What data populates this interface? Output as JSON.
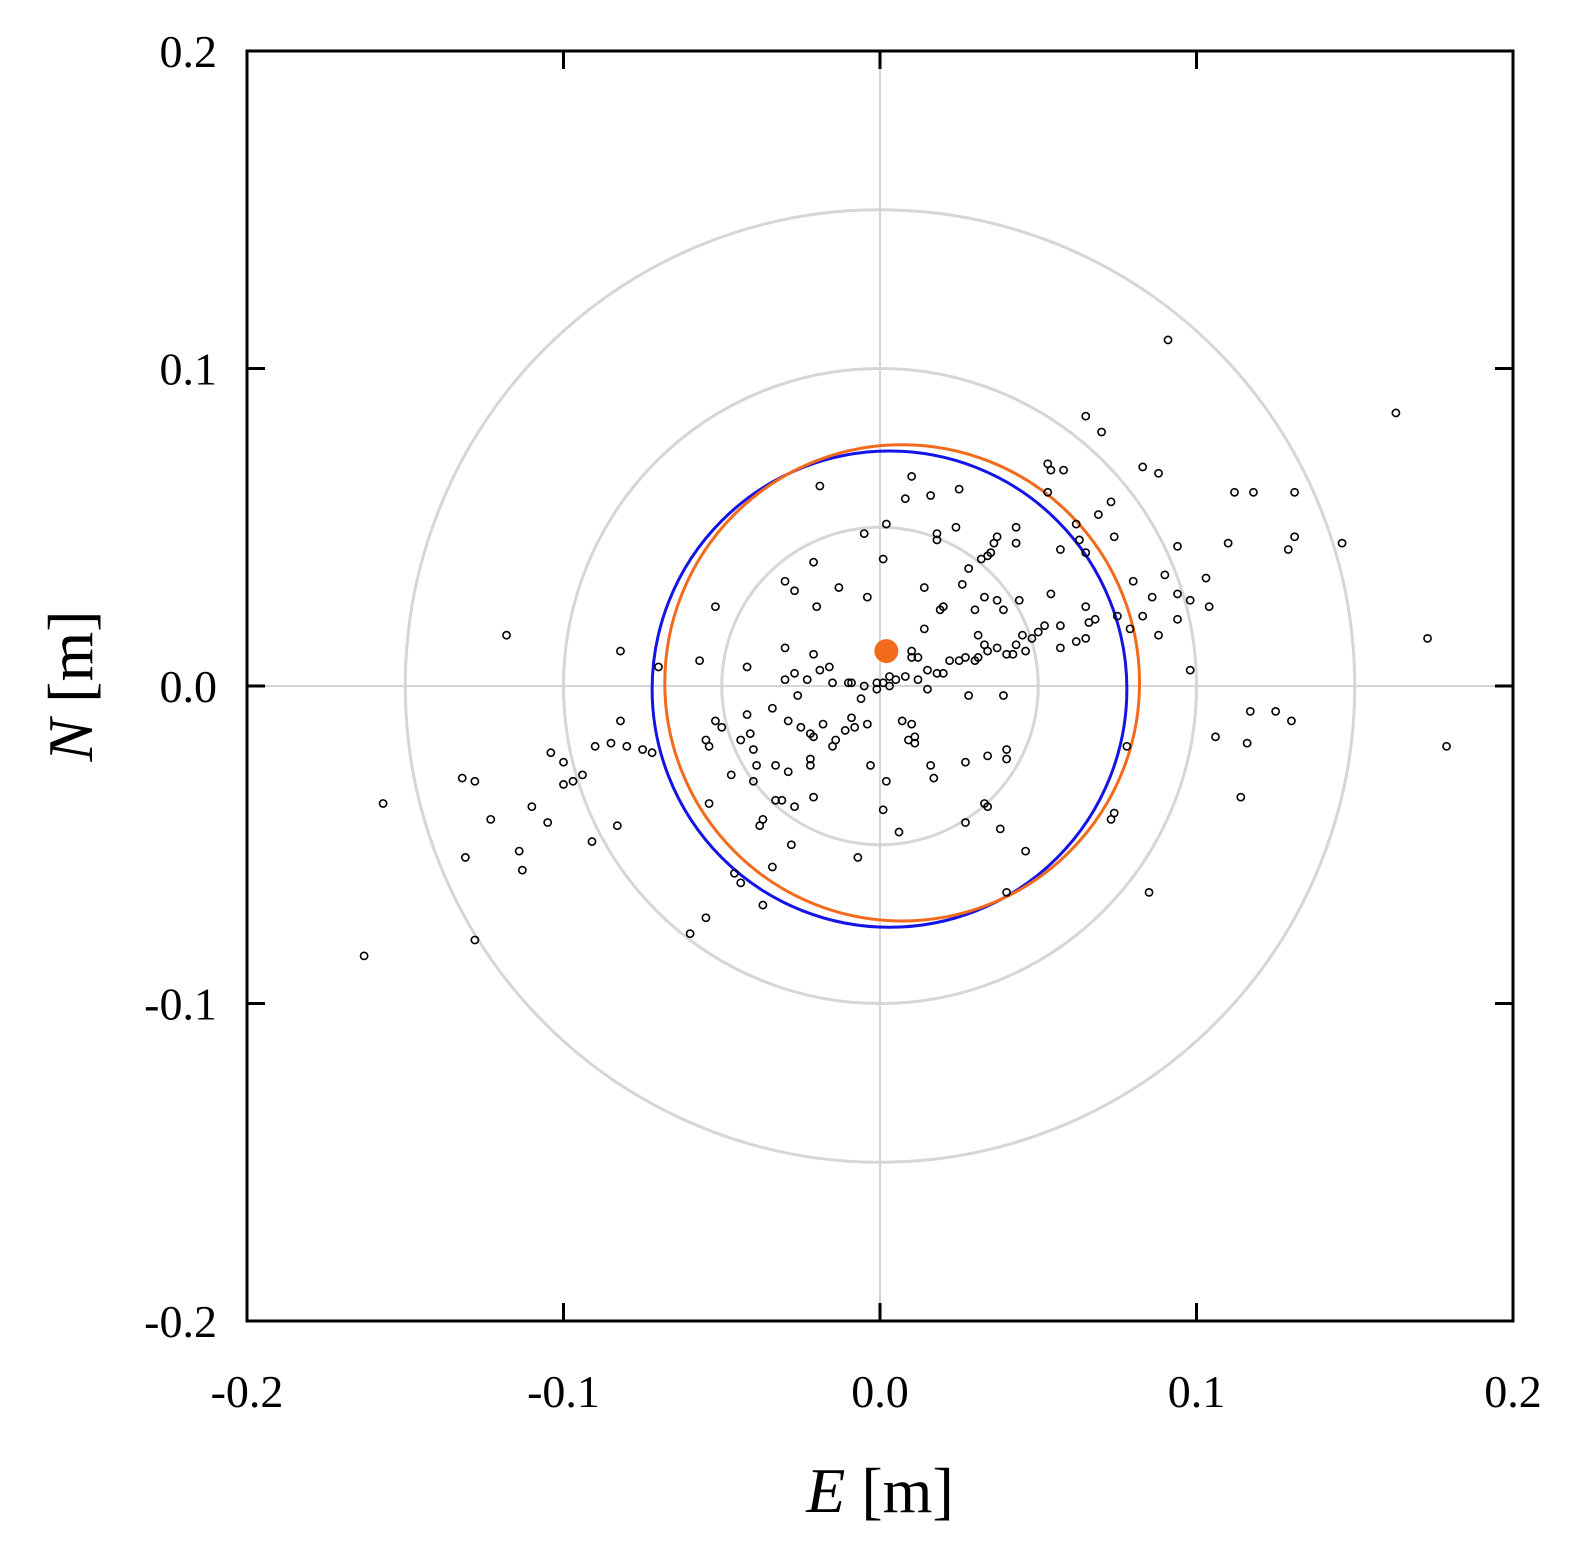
{
  "chart_data": {
    "type": "scatter",
    "title": "",
    "xlabel_var": "E",
    "xlabel_unit": "[m]",
    "ylabel_var": "N",
    "ylabel_unit": "[m]",
    "xlim": [
      -0.2,
      0.2
    ],
    "ylim": [
      -0.2,
      0.2
    ],
    "xticks": [
      -0.2,
      -0.1,
      0.0,
      0.1,
      0.2
    ],
    "yticks": [
      -0.2,
      -0.1,
      0.0,
      0.1,
      0.2
    ],
    "xtick_labels": [
      "-0.2",
      "-0.1",
      "0.0",
      "0.1",
      "0.2"
    ],
    "ytick_labels": [
      "-0.2",
      "-0.1",
      "0.0",
      "0.1",
      "0.2"
    ],
    "reference_circles": {
      "center": [
        0,
        0
      ],
      "radii": [
        0.05,
        0.1,
        0.15
      ],
      "color": "#d6d6d6"
    },
    "crosshair": {
      "x": 0,
      "y": 0,
      "color": "#d6d6d6"
    },
    "fitted_circles": [
      {
        "name": "blue-circle",
        "center": [
          0.003,
          -0.001
        ],
        "radius": 0.075,
        "color": "#1414e6"
      },
      {
        "name": "orange-circle",
        "center": [
          0.007,
          0.001
        ],
        "radius": 0.075,
        "color": "#f26a1b"
      }
    ],
    "mean_point": {
      "x": 0.002,
      "y": 0.011,
      "color": "#f26a1b"
    },
    "series": [
      {
        "name": "observations",
        "marker": "open-circle",
        "color": "#000000",
        "points": [
          [
            0.091,
            0.109
          ],
          [
            0.065,
            0.085
          ],
          [
            0.07,
            0.08
          ],
          [
            0.163,
            0.086
          ],
          [
            0.053,
            0.07
          ],
          [
            0.054,
            0.068
          ],
          [
            0.058,
            0.068
          ],
          [
            0.083,
            0.069
          ],
          [
            0.088,
            0.067
          ],
          [
            0.053,
            0.061
          ],
          [
            0.073,
            0.058
          ],
          [
            0.069,
            0.054
          ],
          [
            0.062,
            0.051
          ],
          [
            0.074,
            0.047
          ],
          [
            0.063,
            0.046
          ],
          [
            0.065,
            0.042
          ],
          [
            0.057,
            0.043
          ],
          [
            0.094,
            0.044
          ],
          [
            0.11,
            0.045
          ],
          [
            0.131,
            0.061
          ],
          [
            0.118,
            0.061
          ],
          [
            0.112,
            0.061
          ],
          [
            0.146,
            0.045
          ],
          [
            0.131,
            0.047
          ],
          [
            0.129,
            0.043
          ],
          [
            0.103,
            0.034
          ],
          [
            0.09,
            0.035
          ],
          [
            0.08,
            0.033
          ],
          [
            0.094,
            0.029
          ],
          [
            0.086,
            0.028
          ],
          [
            0.098,
            0.027
          ],
          [
            0.104,
            0.025
          ],
          [
            0.065,
            0.025
          ],
          [
            0.075,
            0.022
          ],
          [
            0.068,
            0.021
          ],
          [
            0.094,
            0.021
          ],
          [
            0.083,
            0.022
          ],
          [
            0.088,
            0.016
          ],
          [
            0.079,
            0.018
          ],
          [
            0.066,
            0.02
          ],
          [
            0.065,
            0.015
          ],
          [
            0.062,
            0.014
          ],
          [
            0.057,
            0.012
          ],
          [
            0.057,
            0.019
          ],
          [
            0.052,
            0.019
          ],
          [
            0.05,
            0.017
          ],
          [
            0.048,
            0.015
          ],
          [
            0.054,
            0.029
          ],
          [
            0.044,
            0.027
          ],
          [
            0.045,
            0.016
          ],
          [
            0.043,
            0.013
          ],
          [
            0.046,
            0.011
          ],
          [
            0.04,
            0.01
          ],
          [
            0.042,
            0.01
          ],
          [
            0.039,
            0.024
          ],
          [
            0.037,
            0.027
          ],
          [
            0.033,
            0.028
          ],
          [
            0.03,
            0.024
          ],
          [
            0.031,
            0.016
          ],
          [
            0.033,
            0.013
          ],
          [
            0.034,
            0.011
          ],
          [
            0.037,
            0.012
          ],
          [
            0.031,
            0.009
          ],
          [
            0.03,
            0.008
          ],
          [
            0.027,
            0.009
          ],
          [
            0.028,
            0.037
          ],
          [
            0.032,
            0.04
          ],
          [
            0.034,
            0.041
          ],
          [
            0.036,
            0.045
          ],
          [
            0.037,
            0.047
          ],
          [
            0.043,
            0.045
          ],
          [
            0.043,
            0.05
          ],
          [
            0.035,
            0.042
          ],
          [
            0.024,
            0.05
          ],
          [
            0.025,
            0.062
          ],
          [
            0.018,
            0.046
          ],
          [
            0.016,
            0.06
          ],
          [
            0.01,
            0.066
          ],
          [
            0.008,
            0.059
          ],
          [
            0.002,
            0.051
          ],
          [
            0.001,
            0.04
          ],
          [
            -0.005,
            0.048
          ],
          [
            -0.004,
            0.028
          ],
          [
            -0.013,
            0.031
          ],
          [
            -0.019,
            0.063
          ],
          [
            -0.02,
            0.025
          ],
          [
            -0.027,
            0.03
          ],
          [
            -0.03,
            0.033
          ],
          [
            -0.021,
            0.039
          ],
          [
            -0.052,
            0.025
          ],
          [
            -0.057,
            0.008
          ],
          [
            -0.07,
            0.006
          ],
          [
            -0.082,
            0.011
          ],
          [
            -0.118,
            0.016
          ],
          [
            -0.042,
            0.006
          ],
          [
            -0.03,
            0.012
          ],
          [
            -0.021,
            0.01
          ],
          [
            -0.019,
            0.005
          ],
          [
            -0.016,
            0.006
          ],
          [
            -0.015,
            0.001
          ],
          [
            -0.01,
            0.001
          ],
          [
            -0.009,
            0.001
          ],
          [
            -0.005,
            0.0
          ],
          [
            -0.001,
            0.001
          ],
          [
            0.001,
            0.001
          ],
          [
            0.003,
            0.003
          ],
          [
            0.005,
            0.002
          ],
          [
            0.008,
            0.003
          ],
          [
            0.01,
            0.009
          ],
          [
            0.012,
            0.009
          ],
          [
            0.01,
            0.011
          ],
          [
            0.015,
            0.005
          ],
          [
            0.018,
            0.004
          ],
          [
            0.02,
            0.004
          ],
          [
            0.022,
            0.008
          ],
          [
            0.014,
            0.018
          ],
          [
            0.02,
            0.025
          ],
          [
            0.026,
            0.032
          ],
          [
            0.014,
            0.031
          ],
          [
            0.018,
            0.048
          ],
          [
            0.019,
            0.024
          ],
          [
            0.025,
            0.008
          ],
          [
            0.028,
            -0.003
          ],
          [
            0.039,
            -0.003
          ],
          [
            0.015,
            -0.001
          ],
          [
            0.012,
            0.002
          ],
          [
            0.007,
            -0.011
          ],
          [
            0.01,
            -0.012
          ],
          [
            0.011,
            -0.016
          ],
          [
            0.011,
            -0.018
          ],
          [
            0.009,
            -0.017
          ],
          [
            0.016,
            -0.025
          ],
          [
            0.017,
            -0.029
          ],
          [
            0.027,
            -0.024
          ],
          [
            0.034,
            -0.022
          ],
          [
            0.04,
            -0.02
          ],
          [
            0.04,
            -0.023
          ],
          [
            -0.042,
            -0.009
          ],
          [
            -0.034,
            -0.007
          ],
          [
            -0.029,
            -0.011
          ],
          [
            -0.025,
            -0.013
          ],
          [
            -0.022,
            -0.015
          ],
          [
            -0.021,
            -0.016
          ],
          [
            -0.018,
            -0.012
          ],
          [
            -0.014,
            -0.017
          ],
          [
            -0.015,
            -0.019
          ],
          [
            -0.011,
            -0.014
          ],
          [
            -0.008,
            -0.013
          ],
          [
            -0.004,
            -0.012
          ],
          [
            -0.009,
            -0.01
          ],
          [
            -0.006,
            -0.004
          ],
          [
            -0.001,
            -0.001
          ],
          [
            0.003,
            0.0
          ],
          [
            -0.026,
            -0.003
          ],
          [
            -0.023,
            0.002
          ],
          [
            -0.03,
            0.002
          ],
          [
            -0.027,
            0.004
          ],
          [
            -0.052,
            -0.011
          ],
          [
            -0.055,
            -0.017
          ],
          [
            -0.054,
            -0.019
          ],
          [
            -0.05,
            -0.013
          ],
          [
            -0.044,
            -0.017
          ],
          [
            -0.041,
            -0.015
          ],
          [
            -0.04,
            -0.02
          ],
          [
            -0.039,
            -0.025
          ],
          [
            -0.047,
            -0.028
          ],
          [
            -0.04,
            -0.03
          ],
          [
            -0.033,
            -0.025
          ],
          [
            -0.029,
            -0.027
          ],
          [
            -0.022,
            -0.023
          ],
          [
            -0.022,
            -0.025
          ],
          [
            -0.021,
            -0.035
          ],
          [
            -0.027,
            -0.038
          ],
          [
            -0.033,
            -0.036
          ],
          [
            -0.031,
            -0.036
          ],
          [
            -0.038,
            -0.044
          ],
          [
            -0.037,
            -0.042
          ],
          [
            -0.028,
            -0.05
          ],
          [
            -0.034,
            -0.057
          ],
          [
            -0.046,
            -0.059
          ],
          [
            -0.044,
            -0.062
          ],
          [
            -0.037,
            -0.069
          ],
          [
            -0.054,
            -0.037
          ],
          [
            -0.072,
            -0.021
          ],
          [
            -0.075,
            -0.02
          ],
          [
            -0.08,
            -0.019
          ],
          [
            -0.082,
            -0.011
          ],
          [
            -0.085,
            -0.018
          ],
          [
            -0.09,
            -0.019
          ],
          [
            -0.094,
            -0.028
          ],
          [
            -0.097,
            -0.03
          ],
          [
            -0.1,
            -0.024
          ],
          [
            -0.104,
            -0.021
          ],
          [
            -0.1,
            -0.031
          ],
          [
            -0.083,
            -0.044
          ],
          [
            -0.091,
            -0.049
          ],
          [
            -0.11,
            -0.038
          ],
          [
            -0.105,
            -0.043
          ],
          [
            -0.123,
            -0.042
          ],
          [
            -0.128,
            -0.03
          ],
          [
            -0.132,
            -0.029
          ],
          [
            -0.131,
            -0.054
          ],
          [
            -0.114,
            -0.052
          ],
          [
            -0.113,
            -0.058
          ],
          [
            -0.157,
            -0.037
          ],
          [
            -0.163,
            -0.085
          ],
          [
            -0.128,
            -0.08
          ],
          [
            -0.055,
            -0.073
          ],
          [
            -0.06,
            -0.078
          ],
          [
            -0.007,
            -0.054
          ],
          [
            -0.003,
            -0.025
          ],
          [
            0.001,
            -0.039
          ],
          [
            0.002,
            -0.03
          ],
          [
            0.006,
            -0.046
          ],
          [
            0.027,
            -0.043
          ],
          [
            0.033,
            -0.037
          ],
          [
            0.034,
            -0.038
          ],
          [
            0.038,
            -0.045
          ],
          [
            0.046,
            -0.052
          ],
          [
            0.04,
            -0.065
          ],
          [
            0.085,
            -0.065
          ],
          [
            0.074,
            -0.04
          ],
          [
            0.073,
            -0.042
          ],
          [
            0.078,
            -0.019
          ],
          [
            0.106,
            -0.016
          ],
          [
            0.114,
            -0.035
          ],
          [
            0.116,
            -0.018
          ],
          [
            0.117,
            -0.008
          ],
          [
            0.125,
            -0.008
          ],
          [
            0.13,
            -0.011
          ],
          [
            0.173,
            0.015
          ],
          [
            0.179,
            -0.019
          ],
          [
            0.098,
            0.005
          ]
        ]
      }
    ]
  }
}
